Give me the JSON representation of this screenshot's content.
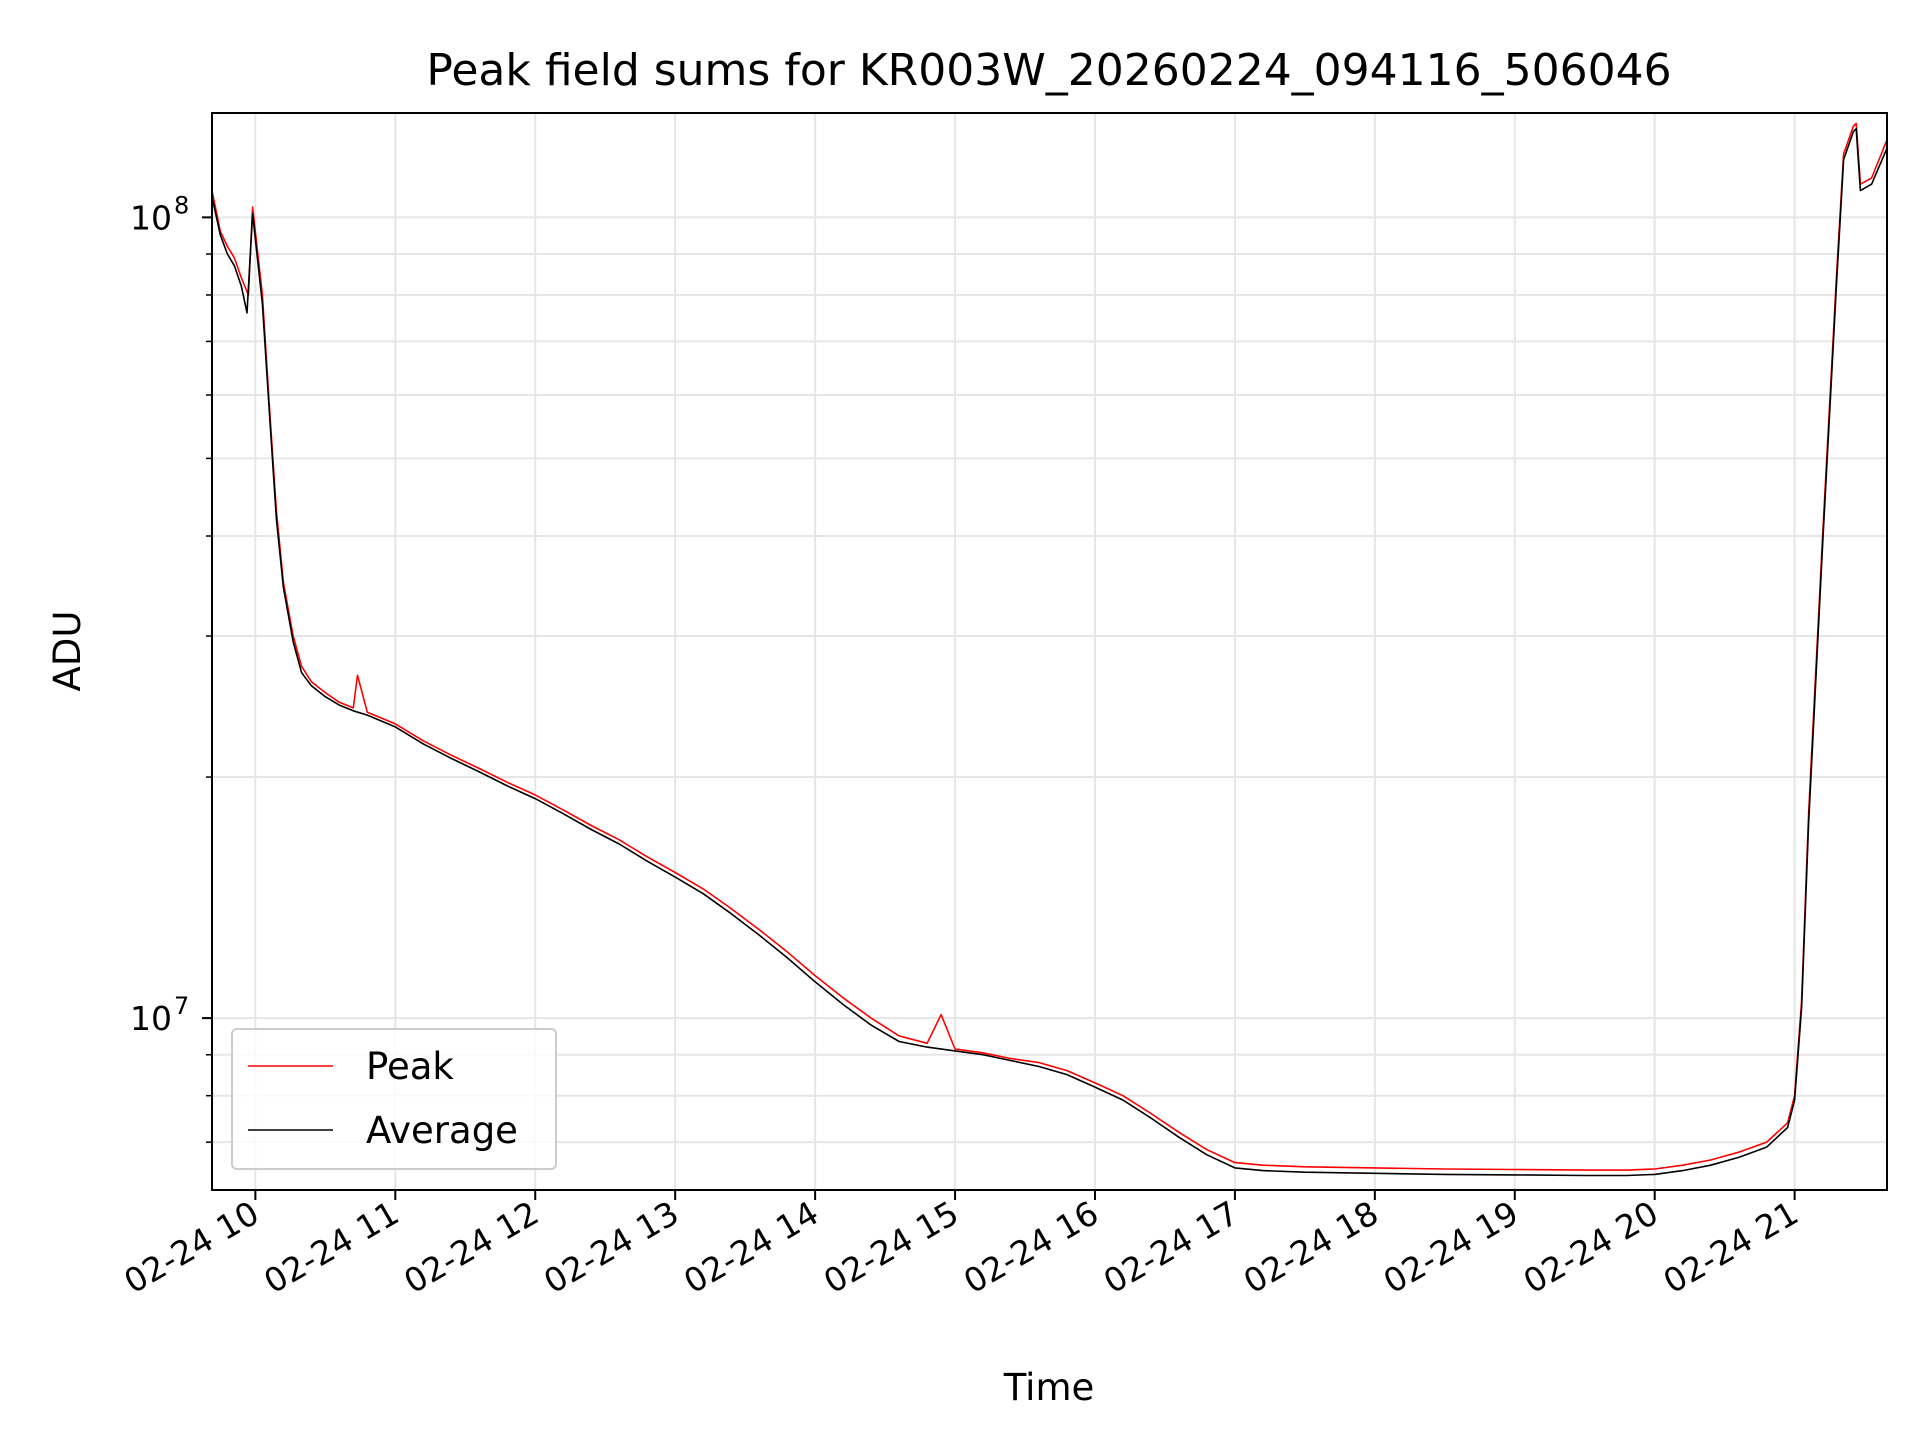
{
  "chart_data": {
    "type": "line",
    "title": "Peak field sums for KR003W_20260224_094116_506046",
    "xlabel": "Time",
    "ylabel": "ADU",
    "yscale": "log",
    "xlim": [
      9.69,
      21.66
    ],
    "ylim": [
      6100000,
      135000000
    ],
    "grid": true,
    "legend_position": "lower-left",
    "x_ticks": [
      {
        "value": 10,
        "label": "02-24 10"
      },
      {
        "value": 11,
        "label": "02-24 11"
      },
      {
        "value": 12,
        "label": "02-24 12"
      },
      {
        "value": 13,
        "label": "02-24 13"
      },
      {
        "value": 14,
        "label": "02-24 14"
      },
      {
        "value": 15,
        "label": "02-24 15"
      },
      {
        "value": 16,
        "label": "02-24 16"
      },
      {
        "value": 17,
        "label": "02-24 17"
      },
      {
        "value": 18,
        "label": "02-24 18"
      },
      {
        "value": 19,
        "label": "02-24 19"
      },
      {
        "value": 20,
        "label": "02-24 20"
      },
      {
        "value": 21,
        "label": "02-24 21"
      }
    ],
    "y_ticks": [
      {
        "value": 10000000,
        "base": "10",
        "exp": "7"
      },
      {
        "value": 100000000,
        "base": "10",
        "exp": "8"
      }
    ],
    "series": [
      {
        "name": "Peak",
        "color": "#ff0000",
        "x": [
          9.69,
          9.75,
          9.8,
          9.85,
          9.9,
          9.95,
          9.98,
          10.05,
          10.1,
          10.15,
          10.2,
          10.27,
          10.33,
          10.4,
          10.5,
          10.6,
          10.7,
          10.73,
          10.8,
          10.9,
          11.0,
          11.2,
          11.4,
          11.6,
          11.8,
          12.0,
          12.2,
          12.4,
          12.6,
          12.8,
          13.0,
          13.2,
          13.4,
          13.6,
          13.8,
          14.0,
          14.2,
          14.4,
          14.6,
          14.8,
          14.9,
          15.0,
          15.2,
          15.4,
          15.6,
          15.8,
          16.0,
          16.2,
          16.4,
          16.6,
          16.8,
          17.0,
          17.2,
          17.5,
          18.0,
          18.5,
          19.0,
          19.5,
          19.8,
          20.0,
          20.2,
          20.4,
          20.6,
          20.8,
          20.95,
          21.0,
          21.05,
          21.1,
          21.2,
          21.3,
          21.35,
          21.42,
          21.44,
          21.47,
          21.55,
          21.66
        ],
        "values": [
          108000000,
          96000000,
          92000000,
          89000000,
          84000000,
          80000000,
          103000000,
          80000000,
          58000000,
          43000000,
          35000000,
          30000000,
          27500000,
          26300000,
          25500000,
          24800000,
          24400000,
          26800000,
          24100000,
          23700000,
          23300000,
          22200000,
          21300000,
          20500000,
          19700000,
          19000000,
          18200000,
          17400000,
          16700000,
          15900000,
          15200000,
          14500000,
          13700000,
          12900000,
          12100000,
          11300000,
          10600000,
          10000000,
          9500000,
          9300000,
          10100000,
          9150000,
          9050000,
          8900000,
          8800000,
          8600000,
          8300000,
          8000000,
          7600000,
          7200000,
          6850000,
          6600000,
          6550000,
          6520000,
          6500000,
          6480000,
          6470000,
          6460000,
          6460000,
          6480000,
          6550000,
          6650000,
          6800000,
          7000000,
          7400000,
          8000000,
          10500000,
          18000000,
          40000000,
          85000000,
          120000000,
          130000000,
          131000000,
          110000000,
          112000000,
          125000000
        ]
      },
      {
        "name": "Average",
        "color": "#000000",
        "x": [
          9.69,
          9.75,
          9.8,
          9.85,
          9.9,
          9.94,
          9.98,
          10.05,
          10.1,
          10.15,
          10.2,
          10.27,
          10.33,
          10.4,
          10.5,
          10.6,
          10.7,
          10.8,
          10.9,
          11.0,
          11.2,
          11.4,
          11.6,
          11.8,
          12.0,
          12.2,
          12.4,
          12.6,
          12.8,
          13.0,
          13.2,
          13.4,
          13.6,
          13.8,
          14.0,
          14.2,
          14.4,
          14.6,
          14.8,
          15.0,
          15.2,
          15.4,
          15.6,
          15.8,
          16.0,
          16.2,
          16.4,
          16.6,
          16.8,
          17.0,
          17.2,
          17.5,
          18.0,
          18.5,
          19.0,
          19.5,
          19.8,
          20.0,
          20.2,
          20.4,
          20.6,
          20.8,
          20.95,
          21.0,
          21.05,
          21.1,
          21.2,
          21.3,
          21.35,
          21.42,
          21.44,
          21.47,
          21.55,
          21.66
        ],
        "values": [
          106000000,
          95000000,
          90000000,
          87000000,
          82000000,
          76000000,
          101000000,
          78000000,
          57000000,
          42000000,
          34500000,
          29500000,
          27000000,
          26000000,
          25200000,
          24600000,
          24200000,
          23900000,
          23500000,
          23100000,
          22000000,
          21100000,
          20300000,
          19500000,
          18800000,
          18000000,
          17200000,
          16500000,
          15700000,
          15000000,
          14300000,
          13500000,
          12700000,
          11900000,
          11100000,
          10400000,
          9800000,
          9350000,
          9200000,
          9100000,
          9000000,
          8850000,
          8700000,
          8500000,
          8200000,
          7900000,
          7500000,
          7100000,
          6750000,
          6500000,
          6450000,
          6420000,
          6400000,
          6380000,
          6370000,
          6360000,
          6360000,
          6380000,
          6450000,
          6550000,
          6700000,
          6900000,
          7300000,
          7900000,
          10300000,
          17500000,
          39000000,
          83000000,
          118000000,
          128000000,
          129000000,
          108000000,
          110000000,
          122000000
        ]
      }
    ]
  }
}
